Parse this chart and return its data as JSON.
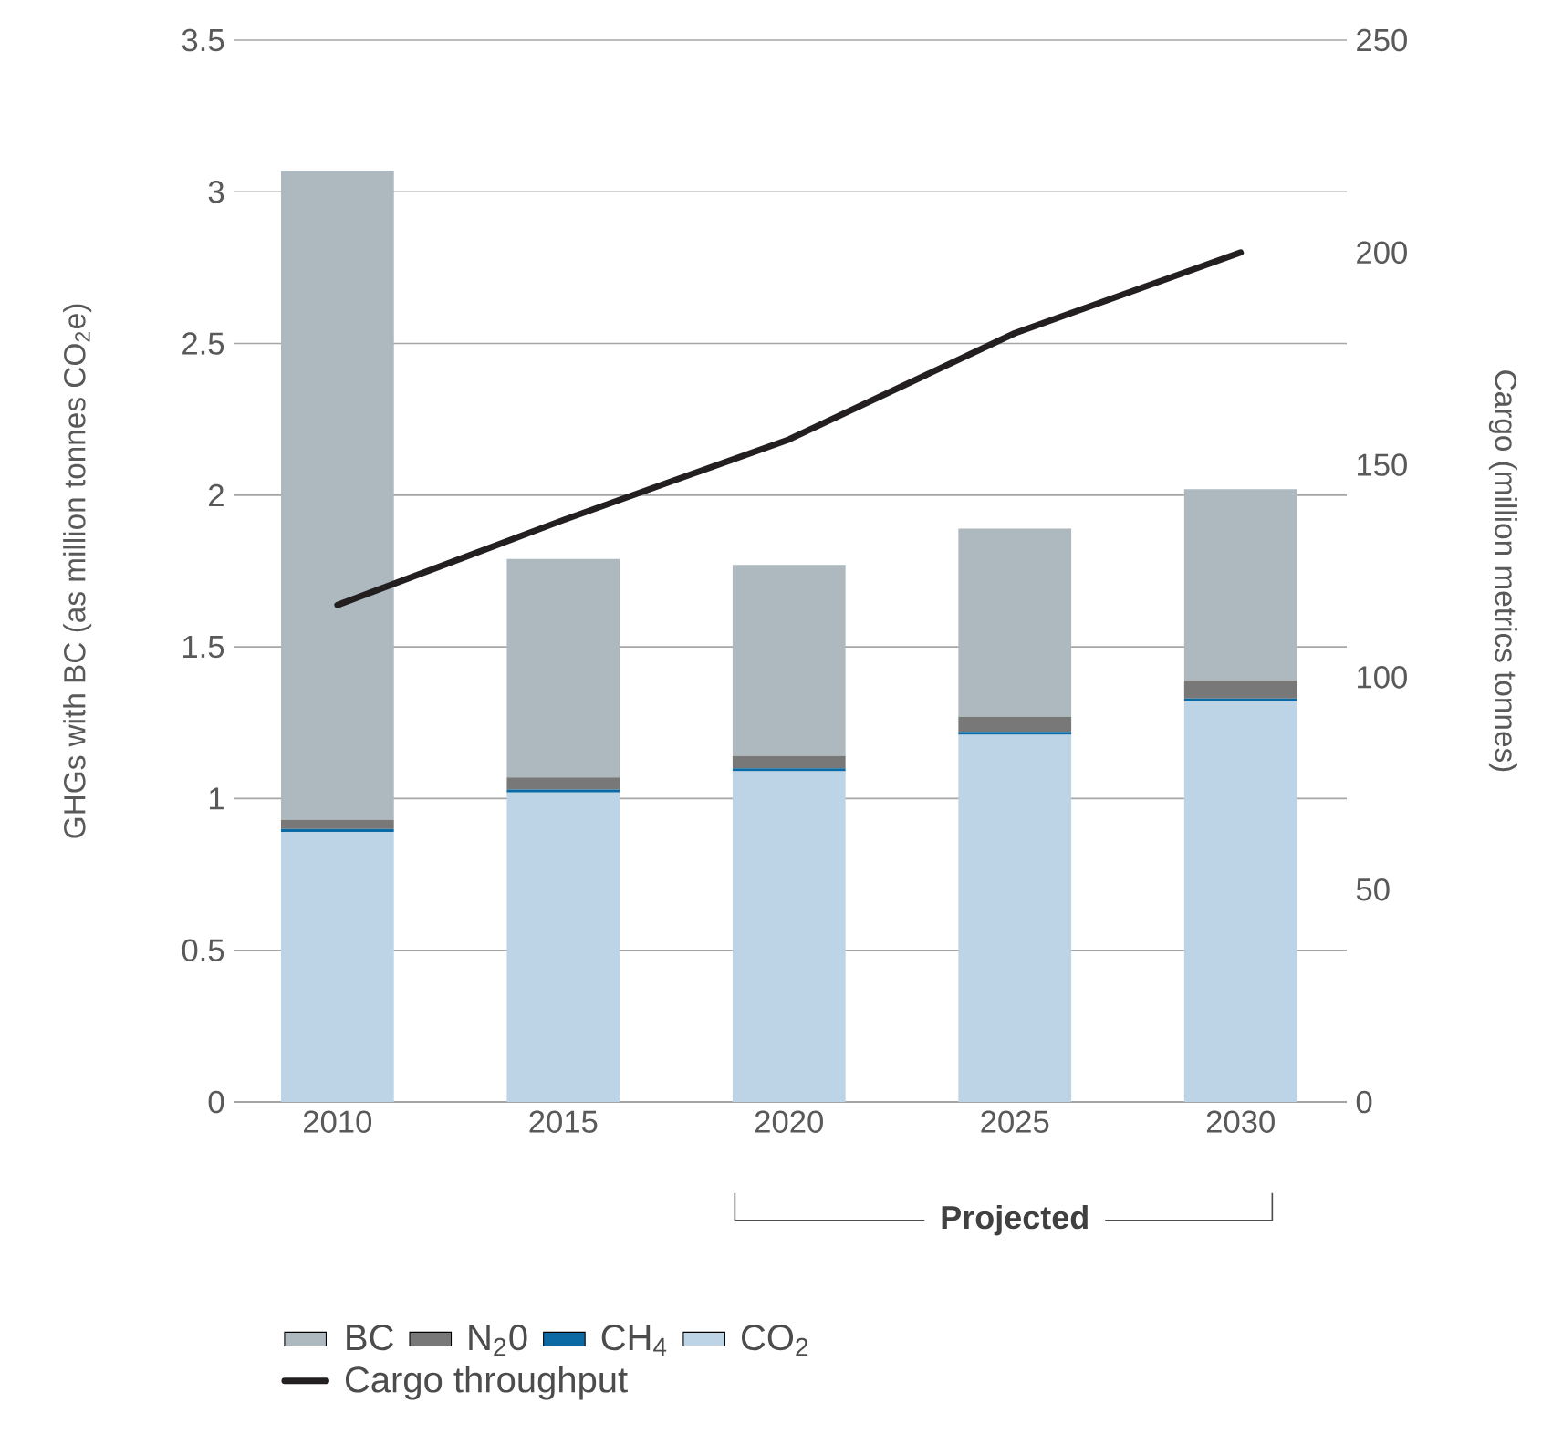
{
  "chart_data": {
    "type": "bar",
    "stacked": true,
    "categories": [
      "2010",
      "2015",
      "2020",
      "2025",
      "2030"
    ],
    "ylabel": "GHGs with BC (as million tonnes CO$_{2}$e)",
    "y2label": "Cargo (million metrics tonnes)",
    "ylim": [
      0,
      3.5
    ],
    "yticks": [
      0,
      0.5,
      1,
      1.5,
      2,
      2.5,
      3,
      3.5
    ],
    "y2lim": [
      0,
      250
    ],
    "y2ticks": [
      0,
      50,
      100,
      150,
      200,
      250
    ],
    "grid": "y",
    "legend": "bottom",
    "annotations": [
      "Projected"
    ],
    "series": [
      {
        "name": "CO$_{2}$",
        "color": "#bdd4e7",
        "values": [
          0.89,
          1.02,
          1.09,
          1.21,
          1.32
        ]
      },
      {
        "name": "CH$_{4}$",
        "color": "#0b6aa3",
        "values": [
          0.01,
          0.01,
          0.01,
          0.01,
          0.01
        ]
      },
      {
        "name": "N$_{2}$0",
        "color": "#787878",
        "values": [
          0.03,
          0.04,
          0.04,
          0.05,
          0.06
        ]
      },
      {
        "name": "BC",
        "color": "#adb8bf",
        "values": [
          2.14,
          0.72,
          0.63,
          0.62,
          0.63
        ]
      },
      {
        "name": "Cargo throughput",
        "type": "line",
        "axis": "y2",
        "color": "#231f20",
        "values": [
          117,
          137,
          156,
          181,
          200
        ]
      }
    ]
  }
}
